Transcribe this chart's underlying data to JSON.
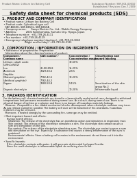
{
  "bg_color": "#f0ede8",
  "page_bg": "#f0ede8",
  "header_left": "Product Name: Lithium Ion Battery Cell",
  "header_right_line1": "Substance Number: SBF-001-00010",
  "header_right_line2": "Established / Revision: Dec.7.2009",
  "title": "Safety data sheet for chemical products (SDS)",
  "section1_title": "1. PRODUCT AND COMPANY IDENTIFICATION",
  "section1_lines": [
    "  • Product name: Lithium Ion Battery Cell",
    "  • Product code: Cylindrical-type cell",
    "    SBF-B660U, SBF-B650L, SBF-B650A",
    "  • Company name:      Sanyo Electric Co., Ltd., Mobile Energy Company",
    "  • Address:            2001 Kamitomioka, Sumoto City, Hyogo, Japan",
    "  • Telephone number:  +81-799-26-4111",
    "  • Fax number:  +81-799-26-4129",
    "  • Emergency telephone number (daytime): +81-799-26-3662",
    "                             (Night and holiday): +81-799-26-3131"
  ],
  "section2_title": "2. COMPOSITION / INFORMATION ON INGREDIENTS",
  "section2_intro": "  • Substance or preparation: Preparation",
  "section2_sub": "    Information about the chemical nature of product:",
  "col_headers_row1": [
    "Component /",
    "CAS number /",
    "Concentration /",
    "Classification and"
  ],
  "col_headers_row2": [
    "Common name",
    "",
    "Concentration range",
    "hazard labeling"
  ],
  "table_rows": [
    [
      "Lithium cobalt oxide",
      "-",
      "30-60%",
      ""
    ],
    [
      "(LiMnCoNiO2)",
      "",
      "",
      ""
    ],
    [
      "Iron",
      "26-00-89-8",
      "15-25%",
      "-"
    ],
    [
      "Aluminum",
      "7429-90-5",
      "2-5%",
      "-"
    ],
    [
      "Graphite",
      "",
      "",
      ""
    ],
    [
      "(Natural graphite)",
      "7782-42-5",
      "10-20%",
      "-"
    ],
    [
      "(Artificial graphite)",
      "7782-44-2",
      "",
      ""
    ],
    [
      "Copper",
      "7440-50-8",
      "5-15%",
      "Sensitization of the skin"
    ],
    [
      "",
      "",
      "",
      "group No.2"
    ],
    [
      "Organic electrolyte",
      "-",
      "10-20%",
      "Inflammable liquid"
    ]
  ],
  "section3_title": "3. HAZARDS IDENTIFICATION",
  "section3_lines": [
    "  For the battery cell, chemical materials are stored in a hermetically sealed metal case, designed to withstand",
    "  temperatures and pressures encountered during normal use. As a result, during normal use, there is no",
    "  physical danger of ignition or explosion and there is no danger of hazardous materials leakage.",
    "    However, if exposed to a fire, added mechanical shocks, decomposed, when electrolyte moisture may issue.",
    "  As gas release cannot be avoided. The battery cell case will be breached of fire-retardants, hazardous",
    "  materials may be released.",
    "    Moreover, if heated strongly by the surrounding fire, some gas may be emitted.",
    "",
    "  • Most important hazard and effects:",
    "      Human health effects:",
    "        Inhalation: The release of the electrolyte has an anesthesia action and stimulates in respiratory tract.",
    "        Skin contact: The release of the electrolyte stimulates a skin. The electrolyte skin contact causes a",
    "        sore and stimulation on the skin.",
    "        Eye contact: The release of the electrolyte stimulates eyes. The electrolyte eye contact causes a sore",
    "        and stimulation on the eye. Especially, a substance that causes a strong inflammation of the eyes is",
    "        contained.",
    "        Environmental effects: Since a battery cell remains in the environment, do not throw out it into the",
    "        environment.",
    "",
    "  • Specific hazards:",
    "      If the electrolyte contacts with water, it will generate detrimental hydrogen fluoride.",
    "      Since the used electrolyte is inflammable liquid, do not bring close to fire."
  ]
}
